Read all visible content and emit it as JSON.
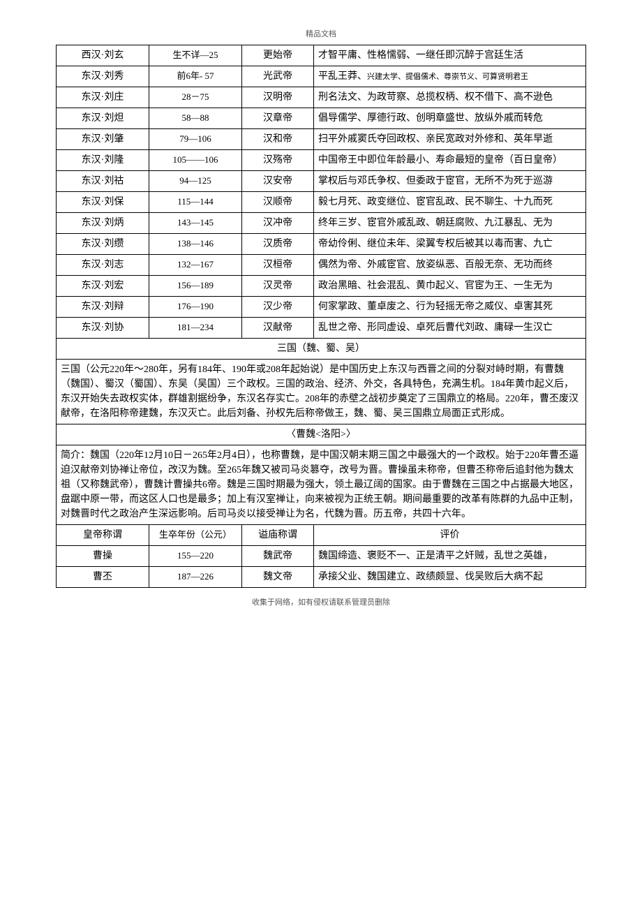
{
  "headerLabel": "精品文档",
  "footerLabel": "收集于网络，如有侵权请联系管理员删除",
  "rows": [
    {
      "c1": "西汉·刘玄",
      "c2": "生不详—25",
      "c3": "更始帝",
      "c4": "才智平庸、性格懦弱、一继任即沉醉于宫廷生活"
    },
    {
      "c1": "东汉·刘秀",
      "c2": "前6年- 57",
      "c3": "光武帝",
      "c4": "平乱王莽、兴建太学、提倡儒术、尊崇节义、可算贤明君王",
      "c4small": true
    },
    {
      "c1": "东汉·刘庄",
      "c2": "28－75",
      "c3": "汉明帝",
      "c4": "刑名法文、为政苛察、总揽权柄、权不借下、高不逊色"
    },
    {
      "c1": "东汉·刘炟",
      "c2": "58—88",
      "c3": "汉章帝",
      "c4": "倡导儒学、厚德行政、创明章盛世、放纵外戚而转危"
    },
    {
      "c1": "东汉·刘肇",
      "c2": "79—106",
      "c3": "汉和帝",
      "c4": "扫平外戚窦氏夺回政权、亲民宽政对外修和、英年早逝"
    },
    {
      "c1": "东汉·刘隆",
      "c2": "105——106",
      "c3": "汉殇帝",
      "c4": "中国帝王中即位年龄最小、寿命最短的皇帝（百日皇帝）"
    },
    {
      "c1": "东汉·刘祜",
      "c2": "94—125",
      "c3": "汉安帝",
      "c4": "掌权后与邓氏争权、但委政于宦官，无所不为死于巡游"
    },
    {
      "c1": "东汉·刘保",
      "c2": "115—144",
      "c3": "汉顺帝",
      "c4": "毅七月死、政变继位、宦官乱政、民不聊生、十九而死"
    },
    {
      "c1": "东汉·刘炳",
      "c2": "143—145",
      "c3": "汉冲帝",
      "c4": "终年三岁、宦官外戚乱政、朝廷腐败、九江暴乱、无为"
    },
    {
      "c1": "东汉·刘缵",
      "c2": "138—146",
      "c3": "汉质帝",
      "c4": "帝幼伶俐、继位未年、梁翼专权后被其以毒而害、九亡"
    },
    {
      "c1": "东汉·刘志",
      "c2": "132—167",
      "c3": "汉桓帝",
      "c4": "偶然为帝、外戚宦官、放姿纵恶、百般无奈、无功而终"
    },
    {
      "c1": "东汉·刘宏",
      "c2": "156—189",
      "c3": "汉灵帝",
      "c4": "政治黑暗、社会混乱、黄巾起义、官宦为王、一生无为"
    },
    {
      "c1": "东汉·刘辩",
      "c2": "176—190",
      "c3": "汉少帝",
      "c4": "何家掌政、董卓废之、行为轻摇无帝之威仪、卓害其死"
    },
    {
      "c1": "东汉·刘协",
      "c2": "181—234",
      "c3": "汉献帝",
      "c4": "乱世之帝、形同虚设、卓死后曹代刘政、庸碌一生汉亡"
    }
  ],
  "sectionTitle1": "三国（魏、蜀、吴）",
  "sectionBody1": "三国（公元220年～280年，另有184年、190年或208年起始说）是中国历史上东汉与西晋之间的分裂对峙时期，有曹魏（魏国）、蜀汉（蜀国）、东吴（吴国）三个政权。三国的政治、经济、外交，各具特色，充满生机。184年黄巾起义后，东汉开始失去政权实体，群雄割据纷争，东汉名存实亡。208年的赤壁之战初步奠定了三国鼎立的格局。220年，曹丕废汉献帝，在洛阳称帝建魏，东汉灭亡。此后刘备、孙权先后称帝做王，魏、蜀、吴三国鼎立局面正式形成。",
  "sectionTitle2": "〈曹魏<洛阳>〉",
  "sectionBody2": "简介：魏国（220年12月10日－265年2月4日），也称曹魏，是中国汉朝末期三国之中最强大的一个政权。始于220年曹丕逼迫汉献帝刘协禅让帝位，改汉为魏。至265年魏又被司马炎篡夺，改号为晋。曹操虽未称帝，但曹丕称帝后追封他为魏太祖（又称魏武帝），曹魏计曹操共6帝。魏是三国时期最为强大，领土最辽阔的国家。由于曹魏在三国之中占据最大地区，盘踞中原一带，而这区人口也是最多；加上有汉室禅让，向来被视为正统王朝。期间最重要的改革有陈群的九品中正制，对魏晋时代之政治产生深远影响。后司马炎以接受禅让为名，代魏为晋。历五帝，共四十六年。",
  "weiHeader": {
    "c1": "皇帝称谓",
    "c2": "生卒年份（公元）",
    "c3": "谥庙称谓",
    "c4": "评价"
  },
  "weiRows": [
    {
      "c1": "曹操",
      "c2": "155—220",
      "c3": "魏武帝",
      "c4": "魏国缔造、褒贬不一、正是清平之奸贼，乱世之英雄，"
    },
    {
      "c1": "曹丕",
      "c2": "187—226",
      "c3": "魏文帝",
      "c4": "承接父业、魏国建立、政绩颇显、伐吴败后大病不起"
    }
  ]
}
